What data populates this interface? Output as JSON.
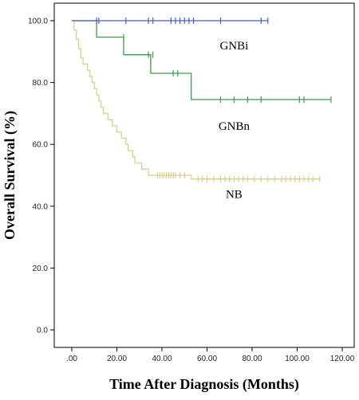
{
  "chart_data": {
    "type": "line",
    "xlabel": "Time After Diagnosis (Months)",
    "ylabel": "Overall Survival (%)",
    "xlim": [
      0,
      120
    ],
    "ylim": [
      0,
      100
    ],
    "x_ticks": [
      ".00",
      "20.00",
      "40.00",
      "60.00",
      "80.00",
      "100.00",
      "120.00"
    ],
    "y_ticks": [
      "0.0",
      "20.0",
      "40.0",
      "60.0",
      "80.0",
      "100.0"
    ],
    "grid": false,
    "series": [
      {
        "name": "GNBi",
        "color": "#4a5fb0",
        "steps": [
          [
            0,
            100
          ],
          [
            87,
            100
          ]
        ],
        "censored": [
          [
            11,
            100
          ],
          [
            12,
            100
          ],
          [
            24,
            100
          ],
          [
            34,
            100
          ],
          [
            36,
            100
          ],
          [
            44,
            100
          ],
          [
            46,
            100
          ],
          [
            48,
            100
          ],
          [
            50,
            100
          ],
          [
            52,
            100
          ],
          [
            54,
            100
          ],
          [
            66,
            100
          ],
          [
            84,
            100
          ],
          [
            87,
            100
          ]
        ]
      },
      {
        "name": "GNBn",
        "color": "#3a9e4a",
        "steps": [
          [
            0,
            100
          ],
          [
            11,
            100
          ],
          [
            11,
            94.7
          ],
          [
            23,
            94.7
          ],
          [
            23,
            89
          ],
          [
            35,
            89
          ],
          [
            35,
            83
          ],
          [
            46,
            83
          ],
          [
            46,
            83
          ],
          [
            53,
            83
          ],
          [
            53,
            74.5
          ],
          [
            115,
            74.5
          ]
        ],
        "censored": [
          [
            23,
            94.7
          ],
          [
            34,
            89
          ],
          [
            36,
            89
          ],
          [
            45,
            83
          ],
          [
            47,
            83
          ],
          [
            66,
            74.5
          ],
          [
            72,
            74.5
          ],
          [
            78,
            74.5
          ],
          [
            84,
            74.5
          ],
          [
            101,
            74.5
          ],
          [
            103,
            74.5
          ],
          [
            115,
            74.5
          ]
        ]
      },
      {
        "name": "NB",
        "color": "#d9cf8c",
        "steps": [
          [
            0,
            100
          ],
          [
            1,
            100
          ],
          [
            1,
            97
          ],
          [
            2,
            97
          ],
          [
            2,
            94
          ],
          [
            3,
            94
          ],
          [
            3,
            91
          ],
          [
            4,
            91
          ],
          [
            4,
            88
          ],
          [
            5,
            88
          ],
          [
            5,
            86
          ],
          [
            7,
            86
          ],
          [
            7,
            84
          ],
          [
            8,
            84
          ],
          [
            8,
            82
          ],
          [
            9,
            82
          ],
          [
            9,
            80
          ],
          [
            10,
            80
          ],
          [
            10,
            78
          ],
          [
            11,
            78
          ],
          [
            11,
            76
          ],
          [
            12,
            76
          ],
          [
            12,
            74
          ],
          [
            13,
            74
          ],
          [
            13,
            72
          ],
          [
            14,
            72
          ],
          [
            14,
            70
          ],
          [
            16,
            70
          ],
          [
            16,
            68
          ],
          [
            18,
            68
          ],
          [
            18,
            66
          ],
          [
            20,
            66
          ],
          [
            20,
            64
          ],
          [
            22,
            64
          ],
          [
            22,
            62
          ],
          [
            24,
            62
          ],
          [
            24,
            60
          ],
          [
            25,
            60
          ],
          [
            25,
            58
          ],
          [
            27,
            58
          ],
          [
            27,
            56
          ],
          [
            28,
            56
          ],
          [
            28,
            54
          ],
          [
            31,
            54
          ],
          [
            31,
            52
          ],
          [
            34,
            52
          ],
          [
            34,
            50
          ],
          [
            53,
            50
          ],
          [
            53,
            48.8
          ],
          [
            110,
            48.8
          ]
        ],
        "censored": [
          [
            38,
            50
          ],
          [
            39,
            50
          ],
          [
            40,
            50
          ],
          [
            41,
            50
          ],
          [
            42,
            50
          ],
          [
            43,
            50
          ],
          [
            44,
            50
          ],
          [
            45,
            50
          ],
          [
            46,
            50
          ],
          [
            48,
            50
          ],
          [
            50,
            50
          ],
          [
            56,
            48.8
          ],
          [
            58,
            48.8
          ],
          [
            60,
            48.8
          ],
          [
            63,
            48.8
          ],
          [
            66,
            48.8
          ],
          [
            68,
            48.8
          ],
          [
            70,
            48.8
          ],
          [
            72,
            48.8
          ],
          [
            74,
            48.8
          ],
          [
            76,
            48.8
          ],
          [
            78,
            48.8
          ],
          [
            81,
            48.8
          ],
          [
            84,
            48.8
          ],
          [
            87,
            48.8
          ],
          [
            90,
            48.8
          ],
          [
            93,
            48.8
          ],
          [
            95,
            48.8
          ],
          [
            97,
            48.8
          ],
          [
            99,
            48.8
          ],
          [
            101,
            48.8
          ],
          [
            103,
            48.8
          ],
          [
            105,
            48.8
          ],
          [
            107,
            48.8
          ],
          [
            110,
            48.8
          ]
        ]
      }
    ],
    "labels": [
      {
        "text": "GNBi",
        "x": 72,
        "y": 92
      },
      {
        "text": "GNBn",
        "x": 72,
        "y": 66
      },
      {
        "text": "NB",
        "x": 72,
        "y": 44
      }
    ]
  }
}
